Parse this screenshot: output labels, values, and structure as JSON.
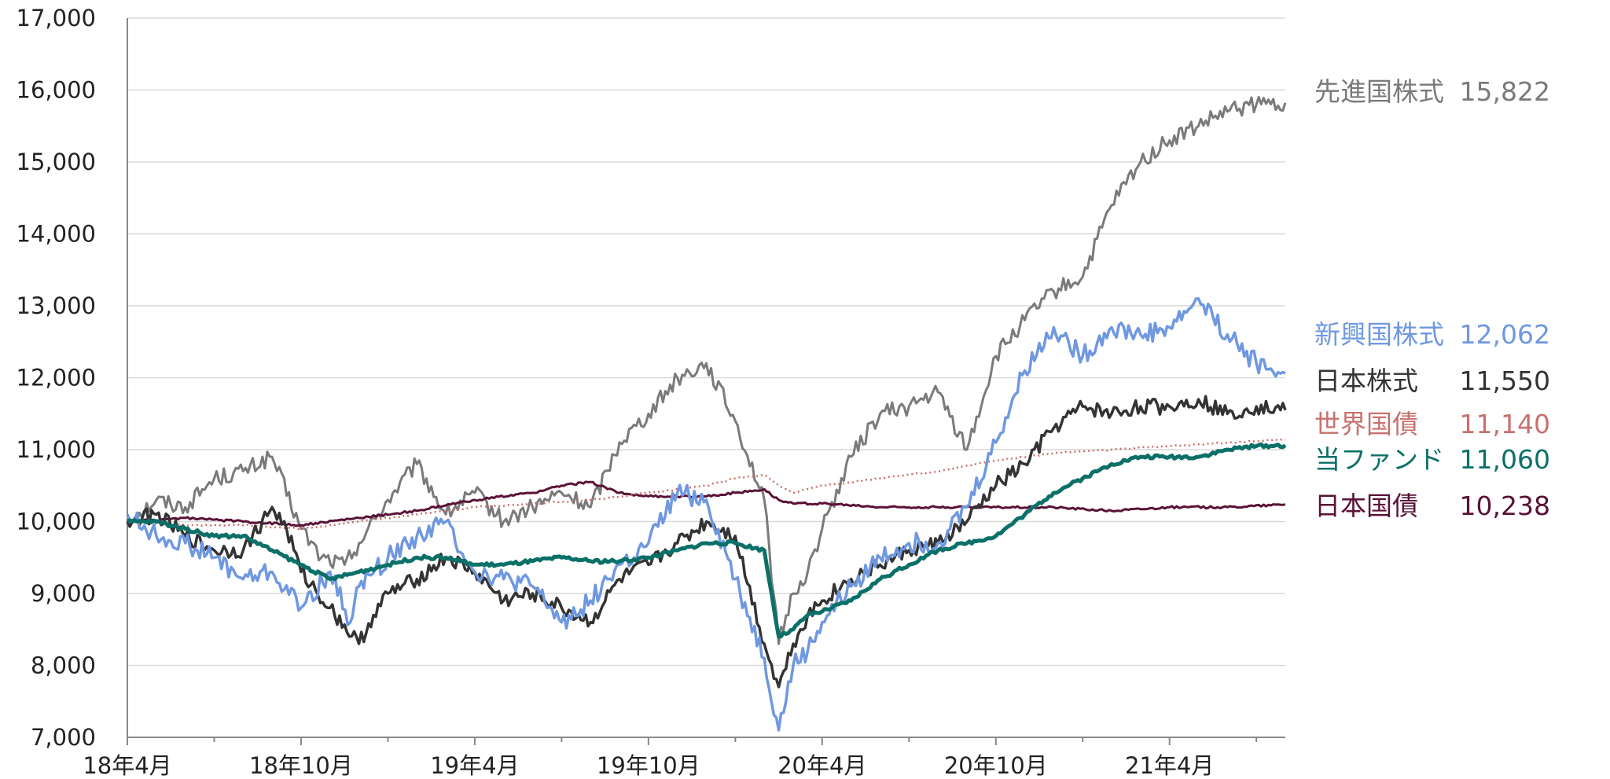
{
  "chart_data": {
    "type": "line",
    "title": "",
    "xlabel": "",
    "ylabel": "",
    "ylim": [
      7000,
      17000
    ],
    "y_ticks": [
      "7,000",
      "8,000",
      "9,000",
      "10,000",
      "11,000",
      "12,000",
      "13,000",
      "14,000",
      "15,000",
      "16,000",
      "17,000"
    ],
    "x_ticks": [
      "18年4月",
      "18年10月",
      "19年4月",
      "19年10月",
      "20年4月",
      "20年10月",
      "21年4月"
    ],
    "grid": "horizontal",
    "x_range_months": [
      0,
      40
    ],
    "series": [
      {
        "name": "先進国株式",
        "value_label": "15,822",
        "color": "#7a7a7a",
        "width": 3,
        "x": [
          0,
          1,
          2,
          3,
          4,
          5,
          6,
          6.7,
          7.5,
          8,
          9,
          10,
          11,
          12,
          13,
          14,
          15,
          16,
          17,
          18,
          19,
          20,
          21,
          22,
          22.5,
          23,
          23.5,
          24,
          25,
          26,
          27,
          28,
          29,
          30,
          31,
          32,
          33,
          34,
          35,
          36,
          37,
          38,
          39,
          40
        ],
        "y": [
          10000,
          10300,
          10200,
          10600,
          10700,
          10900,
          9900,
          9500,
          9400,
          9700,
          10300,
          10800,
          10100,
          10400,
          10000,
          10200,
          10400,
          10200,
          11100,
          11500,
          12000,
          12200,
          11400,
          10300,
          8300,
          9000,
          9300,
          9900,
          10900,
          11500,
          11600,
          11800,
          11000,
          12300,
          12800,
          13200,
          13400,
          14400,
          15000,
          15300,
          15500,
          15700,
          15800,
          15822
        ]
      },
      {
        "name": "新興国株式",
        "value_label": "12,062",
        "color": "#6f98e0",
        "width": 3.5,
        "x": [
          0,
          1,
          2,
          3,
          4,
          5,
          6,
          7,
          7.7,
          8,
          9,
          10,
          11,
          12,
          13,
          14,
          15,
          16,
          17,
          17.5,
          18,
          19,
          20,
          21,
          22,
          22.5,
          23,
          23.5,
          24,
          25,
          26,
          27,
          28,
          29,
          30,
          31,
          32,
          33,
          34,
          35,
          36,
          37,
          38,
          39,
          40
        ],
        "y": [
          10100,
          9800,
          9700,
          9500,
          9200,
          9300,
          8800,
          9300,
          8600,
          9100,
          9500,
          9800,
          10000,
          9300,
          9200,
          9100,
          8600,
          8900,
          9400,
          9500,
          9700,
          10400,
          10300,
          9200,
          8100,
          7100,
          8000,
          8200,
          8600,
          9100,
          9500,
          9700,
          9700,
          10200,
          11100,
          12100,
          12700,
          12300,
          12700,
          12600,
          12700,
          13100,
          12600,
          12200,
          12062
        ]
      },
      {
        "name": "日本株式",
        "value_label": "11,550",
        "color": "#333333",
        "width": 3.5,
        "x": [
          0,
          1,
          2,
          3,
          4,
          5,
          5.5,
          6,
          7,
          8,
          8.5,
          9,
          10,
          11,
          12,
          13,
          14,
          15,
          16,
          17,
          18,
          19,
          20,
          21,
          22,
          22.5,
          23,
          23.5,
          24,
          25,
          26,
          27,
          28,
          29,
          30,
          31,
          32,
          33,
          34,
          35,
          36,
          37,
          38,
          39,
          40
        ],
        "y": [
          10000,
          10100,
          9800,
          9600,
          9600,
          10200,
          9900,
          9300,
          8800,
          8300,
          8700,
          9000,
          9200,
          9500,
          9300,
          8900,
          9000,
          8800,
          8600,
          9200,
          9400,
          9700,
          10000,
          9800,
          8300,
          7700,
          8300,
          8700,
          8900,
          9200,
          9400,
          9600,
          9700,
          10000,
          10500,
          10800,
          11300,
          11600,
          11500,
          11600,
          11600,
          11700,
          11500,
          11600,
          11550
        ]
      },
      {
        "name": "世界国債",
        "value_label": "11,140",
        "color": "#c8716e",
        "width": 2.5,
        "dash": "2 4",
        "x": [
          0,
          2,
          4,
          6,
          8,
          10,
          12,
          14,
          16,
          18,
          20,
          21,
          22,
          22.5,
          23,
          24,
          26,
          28,
          30,
          32,
          34,
          36,
          38,
          40
        ],
        "y": [
          10000,
          9950,
          9950,
          9900,
          10000,
          10100,
          10200,
          10250,
          10300,
          10400,
          10500,
          10600,
          10650,
          10500,
          10400,
          10500,
          10600,
          10700,
          10850,
          10950,
          11000,
          11050,
          11100,
          11140
        ]
      },
      {
        "name": "当ファンド",
        "value_label": "11,060",
        "color": "#0b7068",
        "width": 5,
        "x": [
          0,
          1,
          2,
          3,
          4,
          5,
          6,
          7,
          8,
          9,
          10,
          11,
          12,
          13,
          14,
          15,
          16,
          17,
          18,
          19,
          20,
          21,
          22,
          22.5,
          23,
          23.5,
          24,
          25,
          26,
          27,
          28,
          29,
          30,
          31,
          32,
          33,
          34,
          35,
          36,
          37,
          38,
          39,
          40
        ],
        "y": [
          10000,
          10000,
          9900,
          9800,
          9800,
          9600,
          9400,
          9200,
          9300,
          9400,
          9500,
          9500,
          9400,
          9400,
          9450,
          9500,
          9450,
          9450,
          9500,
          9600,
          9700,
          9700,
          9600,
          8400,
          8500,
          8700,
          8750,
          8900,
          9200,
          9400,
          9600,
          9700,
          9800,
          10100,
          10400,
          10600,
          10800,
          10900,
          10900,
          10900,
          11000,
          11050,
          11060
        ]
      },
      {
        "name": "日本国債",
        "value_label": "10,238",
        "color": "#5a1237",
        "width": 3,
        "x": [
          0,
          2,
          4,
          6,
          8,
          10,
          12,
          14,
          15,
          16,
          17,
          18,
          20,
          21,
          22,
          22.5,
          23,
          24,
          26,
          28,
          30,
          32,
          34,
          36,
          38,
          40
        ],
        "y": [
          10000,
          10050,
          10000,
          9950,
          10050,
          10150,
          10300,
          10400,
          10500,
          10550,
          10400,
          10350,
          10350,
          10400,
          10450,
          10300,
          10250,
          10250,
          10200,
          10200,
          10200,
          10200,
          10150,
          10200,
          10200,
          10238
        ]
      }
    ]
  }
}
